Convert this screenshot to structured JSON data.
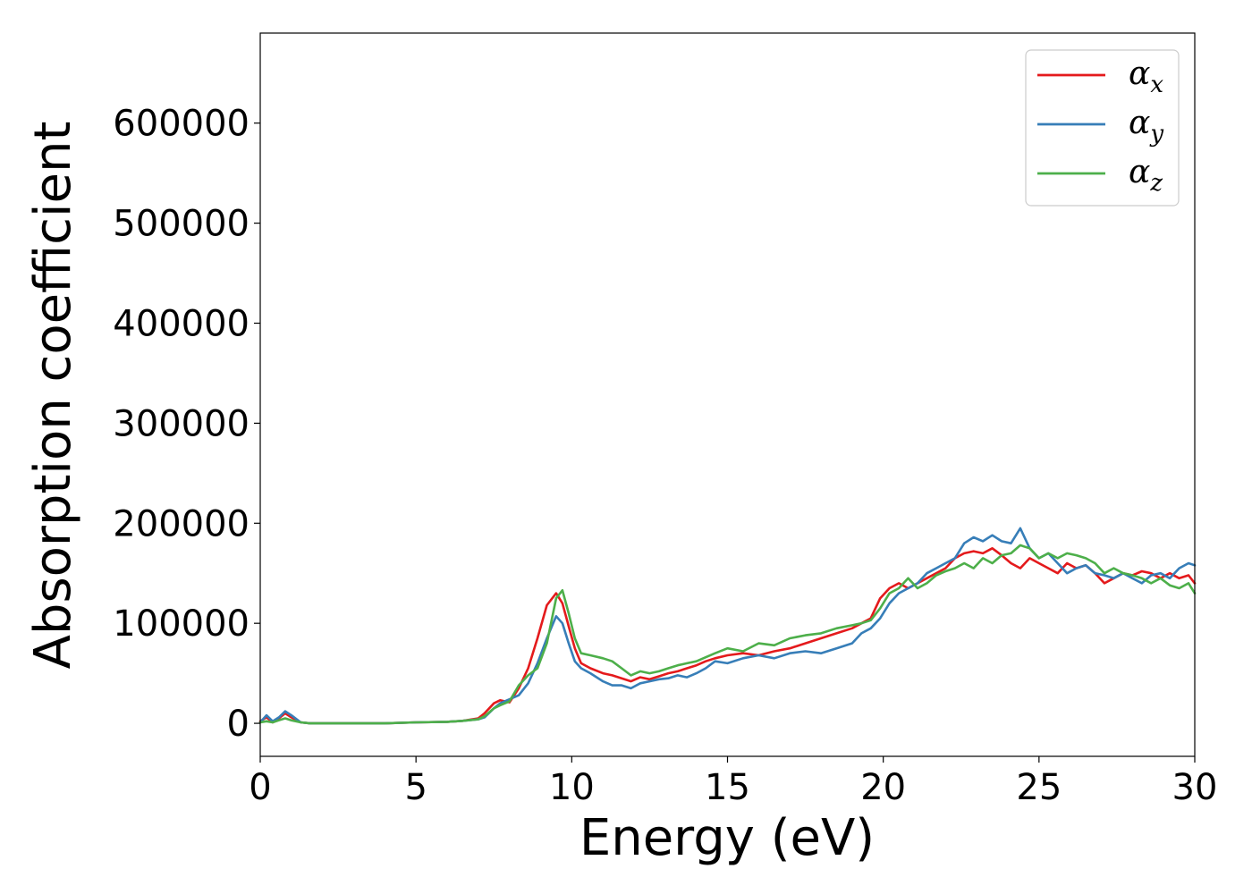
{
  "chart_data": {
    "type": "line",
    "xlabel": "Energy (eV)",
    "ylabel": "Absorption coefficient",
    "xlim": [
      0,
      30
    ],
    "ylim": [
      -33000,
      690000
    ],
    "xticks": [
      0,
      5,
      10,
      15,
      20,
      25,
      30
    ],
    "xtick_labels": [
      "0",
      "5",
      "10",
      "15",
      "20",
      "25",
      "30"
    ],
    "yticks": [
      0,
      100000,
      200000,
      300000,
      400000,
      500000,
      600000
    ],
    "ytick_labels": [
      "0",
      "100000",
      "200000",
      "300000",
      "400000",
      "500000",
      "600000"
    ],
    "grid": false,
    "legend_position": "top-right",
    "series": [
      {
        "name": "α",
        "subscript": "x",
        "color": "#e41a1c",
        "x": [
          0,
          0.2,
          0.4,
          0.6,
          0.8,
          1.0,
          1.3,
          1.6,
          2,
          3,
          4,
          5,
          6,
          6.5,
          7,
          7.2,
          7.5,
          7.7,
          8.0,
          8.3,
          8.6,
          8.9,
          9.2,
          9.5,
          9.7,
          9.9,
          10.1,
          10.3,
          10.6,
          11.0,
          11.3,
          11.6,
          11.9,
          12.2,
          12.5,
          12.8,
          13.1,
          13.4,
          13.7,
          14.0,
          14.3,
          14.6,
          15.0,
          15.5,
          16.0,
          16.5,
          17.0,
          17.5,
          18.0,
          18.5,
          19.0,
          19.3,
          19.6,
          19.9,
          20.2,
          20.5,
          20.8,
          21.1,
          21.4,
          21.7,
          22.0,
          22.3,
          22.6,
          22.9,
          23.2,
          23.5,
          23.8,
          24.1,
          24.4,
          24.7,
          25.0,
          25.3,
          25.6,
          25.9,
          26.2,
          26.5,
          26.8,
          27.1,
          27.4,
          27.7,
          28.0,
          28.3,
          28.6,
          28.9,
          29.2,
          29.5,
          29.8,
          30.0
        ],
        "values": [
          2000,
          6000,
          1000,
          5000,
          10000,
          6000,
          1000,
          0,
          0,
          0,
          0,
          1000,
          1500,
          2500,
          5000,
          10000,
          20000,
          23000,
          21000,
          35000,
          55000,
          85000,
          118000,
          130000,
          120000,
          97000,
          75000,
          60000,
          55000,
          50000,
          48000,
          45000,
          42000,
          46000,
          44000,
          47000,
          50000,
          52000,
          55000,
          58000,
          62000,
          65000,
          68000,
          70000,
          68000,
          72000,
          75000,
          80000,
          85000,
          90000,
          95000,
          100000,
          105000,
          125000,
          135000,
          140000,
          135000,
          140000,
          145000,
          150000,
          155000,
          165000,
          170000,
          172000,
          170000,
          175000,
          168000,
          160000,
          155000,
          165000,
          160000,
          155000,
          150000,
          160000,
          155000,
          158000,
          150000,
          140000,
          145000,
          150000,
          148000,
          152000,
          150000,
          145000,
          150000,
          145000,
          148000,
          140000
        ]
      },
      {
        "name": "α",
        "subscript": "y",
        "color": "#377eb8",
        "x": [
          0,
          0.2,
          0.4,
          0.6,
          0.8,
          1.0,
          1.3,
          1.6,
          2,
          3,
          4,
          5,
          6,
          6.5,
          7,
          7.2,
          7.5,
          7.7,
          8.0,
          8.3,
          8.6,
          8.9,
          9.2,
          9.5,
          9.7,
          9.9,
          10.1,
          10.3,
          10.6,
          11.0,
          11.3,
          11.6,
          11.9,
          12.2,
          12.5,
          12.8,
          13.1,
          13.4,
          13.7,
          14.0,
          14.3,
          14.6,
          15.0,
          15.5,
          16.0,
          16.5,
          17.0,
          17.5,
          18.0,
          18.5,
          19.0,
          19.3,
          19.6,
          19.9,
          20.2,
          20.5,
          20.8,
          21.1,
          21.4,
          21.7,
          22.0,
          22.3,
          22.6,
          22.9,
          23.2,
          23.5,
          23.8,
          24.1,
          24.4,
          24.7,
          25.0,
          25.3,
          25.6,
          25.9,
          26.2,
          26.5,
          26.8,
          27.1,
          27.4,
          27.7,
          28.0,
          28.3,
          28.6,
          28.9,
          29.2,
          29.5,
          29.8,
          30.0
        ],
        "values": [
          1000,
          8000,
          2000,
          6000,
          12000,
          8000,
          1000,
          0,
          0,
          0,
          0,
          1000,
          1500,
          2500,
          4000,
          6000,
          15000,
          20000,
          24000,
          28000,
          40000,
          60000,
          85000,
          107000,
          100000,
          80000,
          62000,
          55000,
          50000,
          42000,
          38000,
          38000,
          35000,
          40000,
          42000,
          44000,
          45000,
          48000,
          46000,
          50000,
          55000,
          62000,
          60000,
          65000,
          68000,
          65000,
          70000,
          72000,
          70000,
          75000,
          80000,
          90000,
          95000,
          105000,
          120000,
          130000,
          135000,
          140000,
          150000,
          155000,
          160000,
          165000,
          180000,
          186000,
          182000,
          188000,
          182000,
          180000,
          195000,
          175000,
          165000,
          170000,
          160000,
          150000,
          155000,
          158000,
          150000,
          148000,
          145000,
          150000,
          145000,
          140000,
          148000,
          150000,
          145000,
          155000,
          160000,
          158000
        ]
      },
      {
        "name": "α",
        "subscript": "z",
        "color": "#4daf4a",
        "x": [
          0,
          0.2,
          0.4,
          0.6,
          0.8,
          1.0,
          1.3,
          1.6,
          2,
          3,
          4,
          5,
          6,
          6.5,
          7,
          7.2,
          7.5,
          7.7,
          8.0,
          8.3,
          8.6,
          8.9,
          9.2,
          9.5,
          9.7,
          9.9,
          10.1,
          10.3,
          10.6,
          11.0,
          11.3,
          11.6,
          11.9,
          12.2,
          12.5,
          12.8,
          13.1,
          13.4,
          13.7,
          14.0,
          14.3,
          14.6,
          15.0,
          15.5,
          16.0,
          16.5,
          17.0,
          17.5,
          18.0,
          18.5,
          19.0,
          19.3,
          19.6,
          19.9,
          20.2,
          20.5,
          20.8,
          21.1,
          21.4,
          21.7,
          22.0,
          22.3,
          22.6,
          22.9,
          23.2,
          23.5,
          23.8,
          24.1,
          24.4,
          24.7,
          25.0,
          25.3,
          25.6,
          25.9,
          26.2,
          26.5,
          26.8,
          27.1,
          27.4,
          27.7,
          28.0,
          28.3,
          28.6,
          28.9,
          29.2,
          29.5,
          29.8,
          30.0
        ],
        "values": [
          1000,
          2000,
          1000,
          3000,
          5000,
          3000,
          1000,
          0,
          0,
          0,
          0,
          1000,
          1500,
          2500,
          4000,
          7000,
          15000,
          18000,
          22000,
          38000,
          48000,
          55000,
          80000,
          125000,
          133000,
          110000,
          85000,
          70000,
          68000,
          65000,
          62000,
          55000,
          48000,
          52000,
          50000,
          52000,
          55000,
          58000,
          60000,
          62000,
          66000,
          70000,
          75000,
          72000,
          80000,
          78000,
          85000,
          88000,
          90000,
          95000,
          98000,
          100000,
          103000,
          115000,
          130000,
          135000,
          145000,
          135000,
          140000,
          148000,
          152000,
          155000,
          160000,
          155000,
          165000,
          160000,
          168000,
          170000,
          178000,
          175000,
          165000,
          170000,
          165000,
          170000,
          168000,
          165000,
          160000,
          150000,
          155000,
          150000,
          148000,
          145000,
          140000,
          145000,
          138000,
          135000,
          140000,
          130000
        ]
      }
    ]
  }
}
